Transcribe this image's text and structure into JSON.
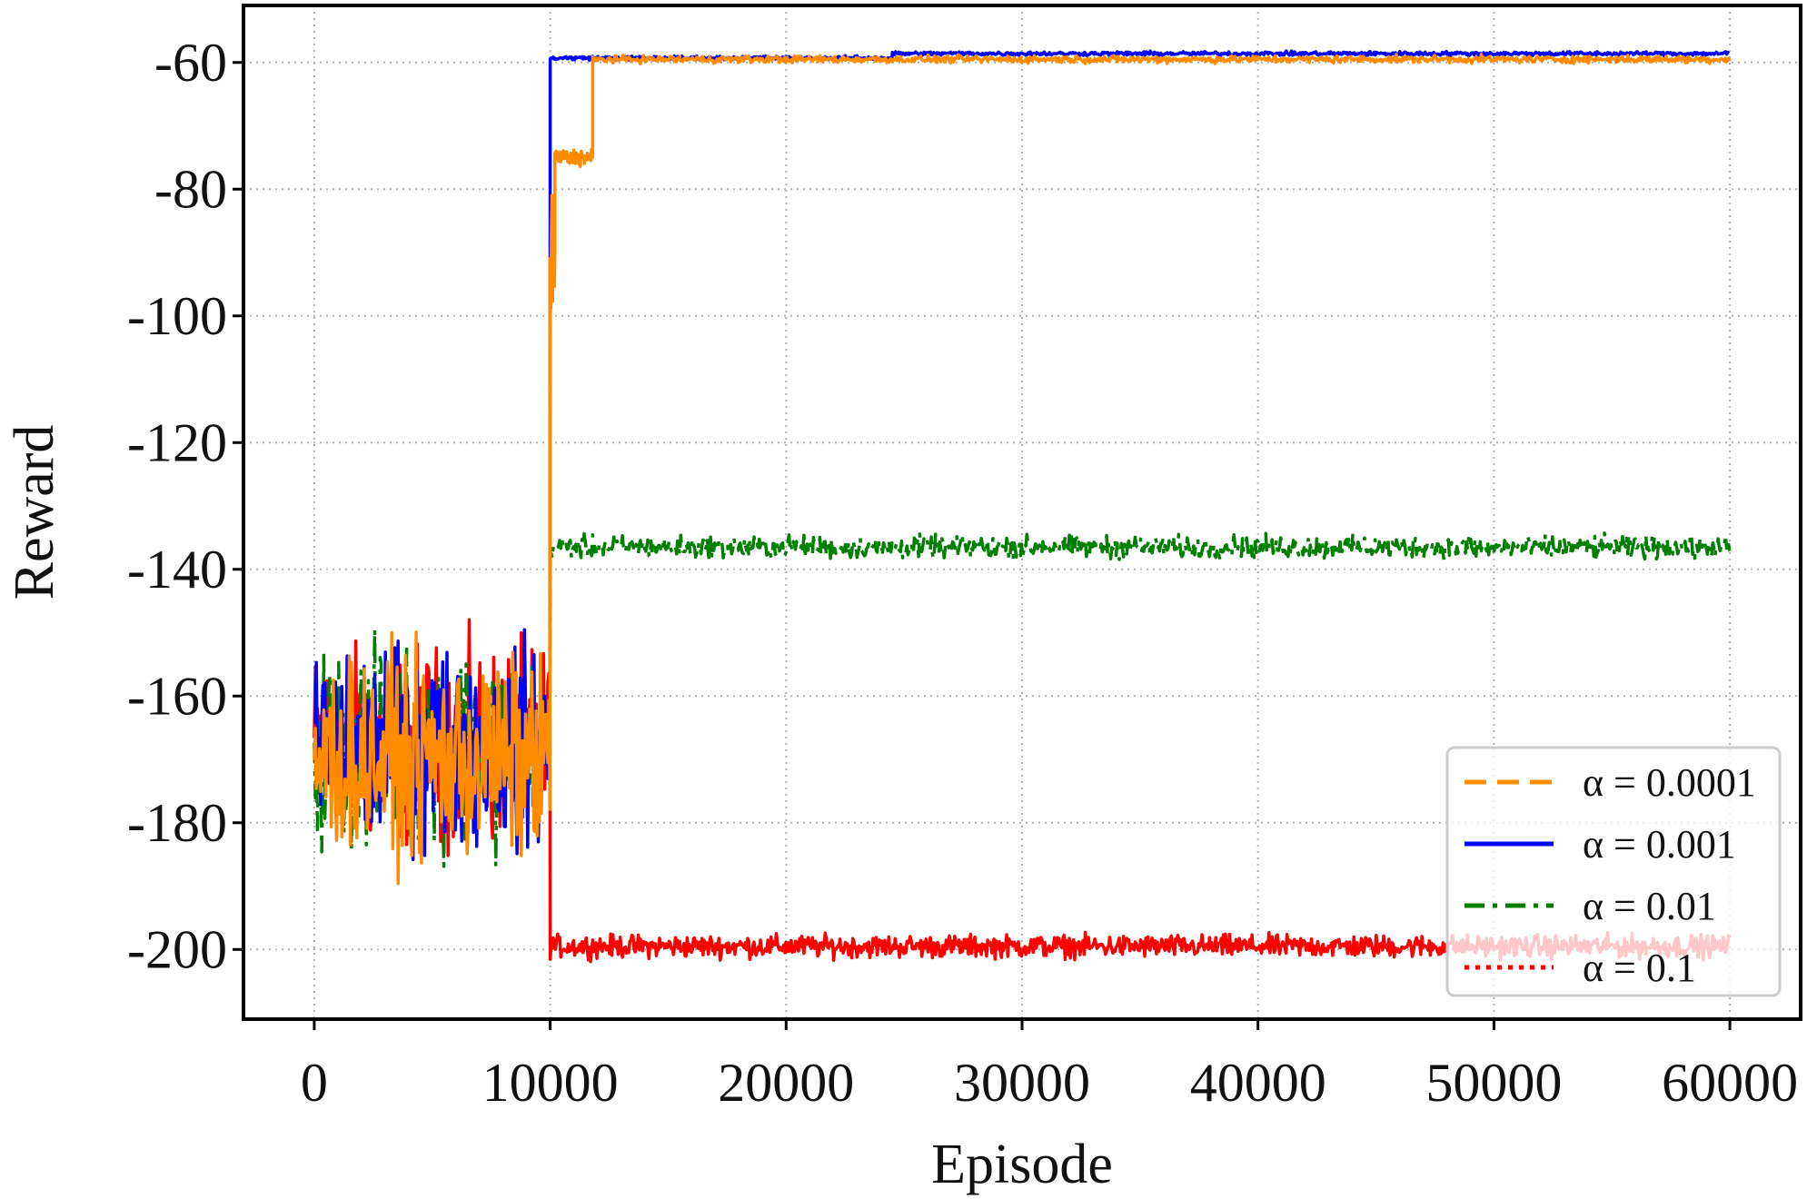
{
  "chart_data": {
    "type": "line",
    "xlabel": "Episode",
    "ylabel": "Reward",
    "xlim": [
      -3000,
      63000
    ],
    "ylim": [
      -211,
      -51
    ],
    "x_ticks": [
      0,
      10000,
      20000,
      30000,
      40000,
      50000,
      60000
    ],
    "x_tick_labels": [
      "0",
      "10000",
      "20000",
      "30000",
      "40000",
      "50000",
      "60000"
    ],
    "y_ticks": [
      -60,
      -80,
      -100,
      -120,
      -140,
      -160,
      -180,
      -200
    ],
    "y_tick_labels": [
      "-60",
      "-80",
      "-100",
      "-120",
      "-140",
      "-160",
      "-180",
      "-200"
    ],
    "grid": true,
    "legend_position": "lower-right",
    "series": [
      {
        "name": "α = 0.0001",
        "color": "#ff8c00",
        "dash": "dashed",
        "phases": [
          {
            "x": [
              0,
              10000
            ],
            "mean": -170,
            "spread": 14
          },
          {
            "x": [
              10000,
              10200
            ],
            "mean": -90,
            "spread": 10
          },
          {
            "x": [
              10200,
              11800
            ],
            "mean": -75,
            "spread": 1.2
          },
          {
            "x": [
              11800,
              60000
            ],
            "mean": -59.5,
            "spread": 0.5
          }
        ]
      },
      {
        "name": "α = 0.001",
        "color": "#0000ff",
        "dash": "solid",
        "phases": [
          {
            "x": [
              0,
              10000
            ],
            "mean": -168,
            "spread": 14
          },
          {
            "x": [
              10000,
              24500
            ],
            "mean": -59.3,
            "spread": 0.3
          },
          {
            "x": [
              24500,
              60000
            ],
            "mean": -58.6,
            "spread": 0.3
          }
        ]
      },
      {
        "name": "α = 0.01",
        "color": "#007f00",
        "dash": "dashdot",
        "phases": [
          {
            "x": [
              0,
              10000
            ],
            "mean": -168,
            "spread": 14
          },
          {
            "x": [
              10000,
              60000
            ],
            "mean": -136.5,
            "spread": 1.6
          }
        ]
      },
      {
        "name": "α = 0.1",
        "color": "#ff0000",
        "dash": "dotted",
        "phases": [
          {
            "x": [
              0,
              10000
            ],
            "mean": -168,
            "spread": 14
          },
          {
            "x": [
              10000,
              60000
            ],
            "mean": -199.5,
            "spread": 1.6
          }
        ]
      }
    ]
  }
}
